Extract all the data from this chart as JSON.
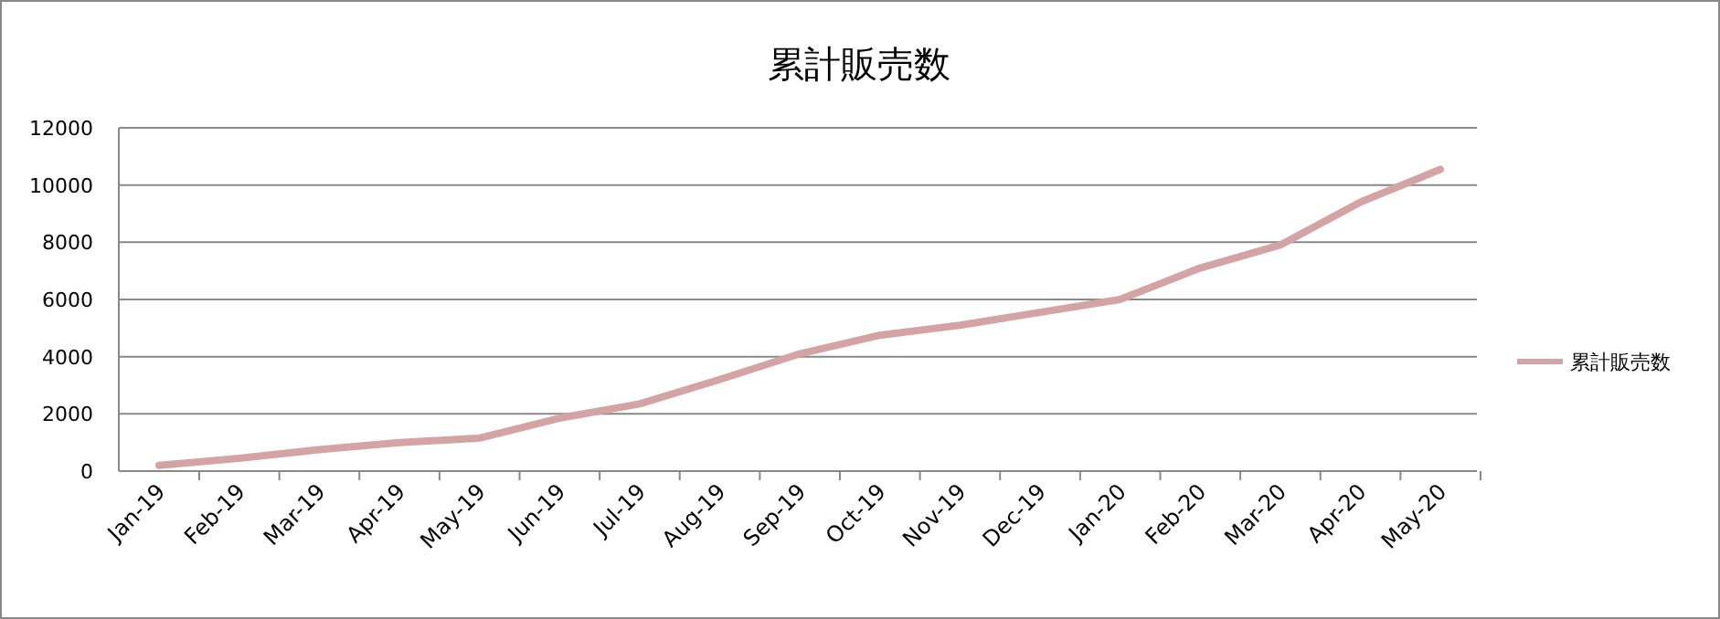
{
  "chart_data": {
    "type": "line",
    "title": "累計販売数",
    "categories": [
      "Jan-19",
      "Feb-19",
      "Mar-19",
      "Apr-19",
      "May-19",
      "Jun-19",
      "Jul-19",
      "Aug-19",
      "Sep-19",
      "Oct-19",
      "Nov-19",
      "Dec-19",
      "Jan-20",
      "Feb-20",
      "Mar-20",
      "Apr-20",
      "May-20"
    ],
    "series": [
      {
        "name": "累計販売数",
        "color": "#d4a3a3",
        "values": [
          200,
          450,
          750,
          1000,
          1150,
          1850,
          2350,
          3200,
          4100,
          4750,
          5100,
          5550,
          6000,
          7100,
          7900,
          9400,
          10550
        ]
      }
    ],
    "ylim": [
      0,
      12000
    ],
    "yticks": [
      0,
      2000,
      4000,
      6000,
      8000,
      10000,
      12000
    ],
    "grid": "y",
    "legend": "right",
    "marker": "none",
    "line_style": "solid"
  }
}
